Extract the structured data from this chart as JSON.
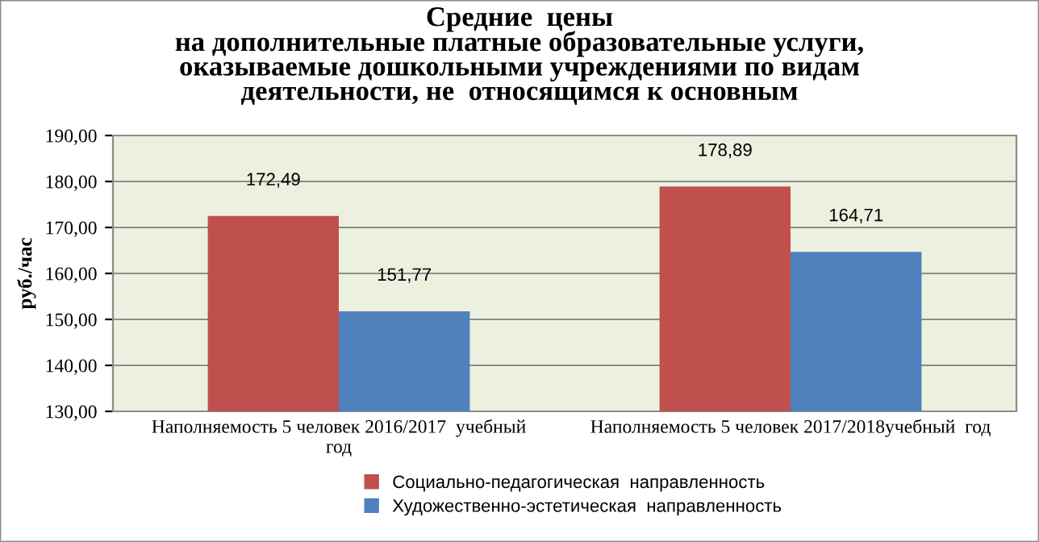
{
  "chart_data": {
    "type": "bar",
    "title": "Средние  цены\nна дополнительные платные образовательные услуги,\nоказываемые дошкольными учреждениями по видам\nдеятельности, не  относящимся к основным",
    "ylabel": "руб./час",
    "categories": [
      "Наполняемость 5 человек 2016/2017  учебный\nгод",
      "Наполняемость 5 человек 2017/2018учебный  год"
    ],
    "series": [
      {
        "name": "Социально-педагогическая  направленность",
        "color": "#c0504d",
        "values": [
          172.49,
          178.89
        ],
        "value_labels": [
          "172,49",
          "178,89"
        ]
      },
      {
        "name": "Художественно-эстетическая  направленность",
        "color": "#4f81bd",
        "values": [
          151.77,
          164.71
        ],
        "value_labels": [
          "151,77",
          "164,71"
        ]
      }
    ],
    "ylim": [
      130,
      190
    ],
    "yticks": [
      {
        "value": 130,
        "label": "130,00"
      },
      {
        "value": 140,
        "label": "140,00"
      },
      {
        "value": 150,
        "label": "150,00"
      },
      {
        "value": 160,
        "label": "160,00"
      },
      {
        "value": 170,
        "label": "170,00"
      },
      {
        "value": 180,
        "label": "180,00"
      },
      {
        "value": 190,
        "label": "190,00"
      }
    ],
    "grid": "y",
    "legend": "bottom"
  }
}
